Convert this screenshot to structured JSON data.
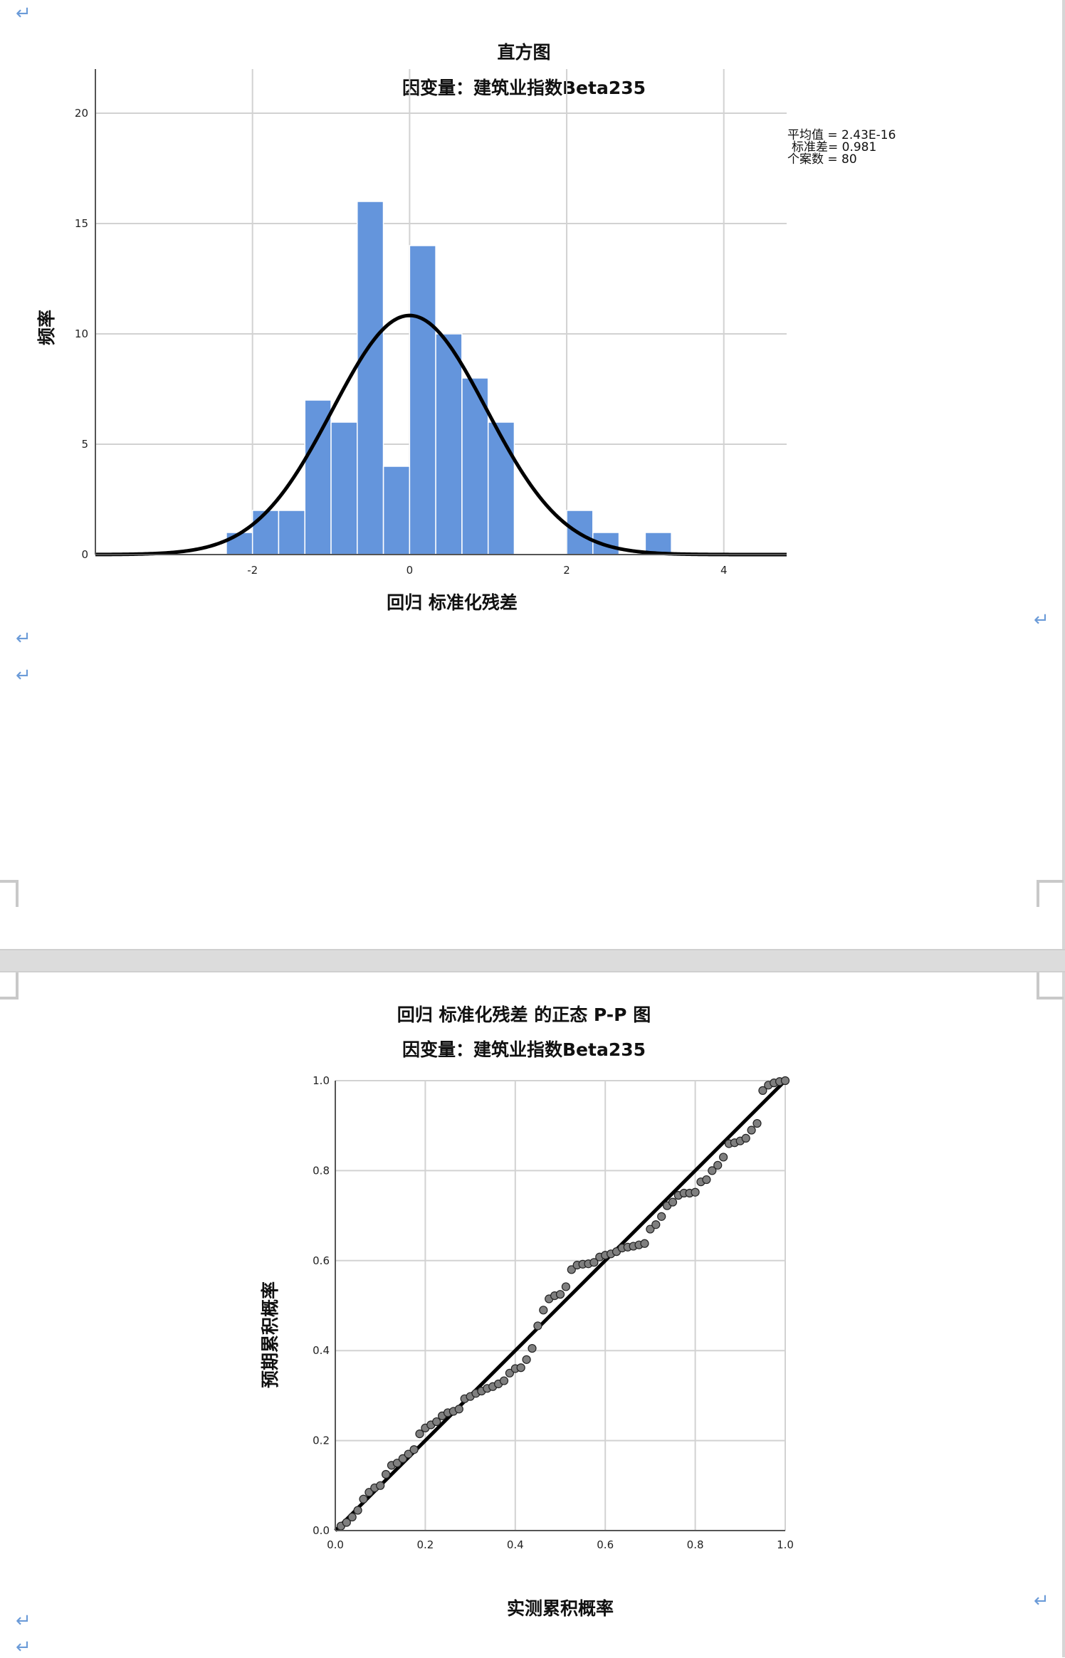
{
  "paragraph_mark": "↵",
  "chart_data": [
    {
      "type": "bar",
      "subtype": "histogram",
      "title": "直方图",
      "subtitle": "因变量：建筑业指数Beta235",
      "xlabel": "回归 标准化残差",
      "ylabel": "频率",
      "xlim": [
        -4.0,
        4.8
      ],
      "ylim": [
        0,
        22
      ],
      "x_ticks": [
        -2,
        0,
        2,
        4
      ],
      "y_ticks": [
        0,
        5,
        10,
        15,
        20
      ],
      "grid": true,
      "bar_color": "#6495dc",
      "bin_width": 0.333,
      "bins": [
        {
          "start": -2.333,
          "count": 1
        },
        {
          "start": -2.0,
          "count": 2
        },
        {
          "start": -1.667,
          "count": 2
        },
        {
          "start": -1.333,
          "count": 7
        },
        {
          "start": -1.0,
          "count": 6
        },
        {
          "start": -0.667,
          "count": 16
        },
        {
          "start": -0.333,
          "count": 4
        },
        {
          "start": 0.0,
          "count": 14
        },
        {
          "start": 0.333,
          "count": 10
        },
        {
          "start": 0.667,
          "count": 8
        },
        {
          "start": 1.0,
          "count": 6
        },
        {
          "start": 2.0,
          "count": 2
        },
        {
          "start": 2.333,
          "count": 1
        },
        {
          "start": 3.0,
          "count": 1
        }
      ],
      "normal_curve": {
        "mean": 0,
        "sd": 0.981,
        "n": 80
      },
      "stats": [
        {
          "label": "平均值 = 2.43E-16"
        },
        {
          "label": "标准差= 0.981"
        },
        {
          "label": "个案数 = 80"
        }
      ]
    },
    {
      "type": "scatter",
      "subtype": "pp-plot",
      "title": "回归 标准化残差 的正态 P-P 图",
      "subtitle": "因变量：建筑业指数Beta235",
      "xlabel": "实测累积概率",
      "ylabel": "预期累积概率",
      "xlim": [
        0.0,
        1.0
      ],
      "ylim": [
        0.0,
        1.0
      ],
      "x_ticks": [
        "0.0",
        "0.2",
        "0.4",
        "0.6",
        "0.8",
        "1.0"
      ],
      "y_ticks": [
        "0.0",
        "0.2",
        "0.4",
        "0.6",
        "0.8",
        "1.0"
      ],
      "grid": true,
      "reference_line": [
        [
          0,
          0
        ],
        [
          1,
          1
        ]
      ],
      "point_color": "#7f7f7f",
      "points": [
        [
          0.0125,
          0.01
        ],
        [
          0.025,
          0.018
        ],
        [
          0.0375,
          0.03
        ],
        [
          0.05,
          0.045
        ],
        [
          0.0625,
          0.07
        ],
        [
          0.075,
          0.085
        ],
        [
          0.0875,
          0.095
        ],
        [
          0.1,
          0.1
        ],
        [
          0.1125,
          0.125
        ],
        [
          0.125,
          0.145
        ],
        [
          0.1375,
          0.15
        ],
        [
          0.15,
          0.16
        ],
        [
          0.1625,
          0.17
        ],
        [
          0.175,
          0.18
        ],
        [
          0.1875,
          0.215
        ],
        [
          0.2,
          0.228
        ],
        [
          0.2125,
          0.235
        ],
        [
          0.225,
          0.242
        ],
        [
          0.2375,
          0.255
        ],
        [
          0.25,
          0.262
        ],
        [
          0.2625,
          0.265
        ],
        [
          0.275,
          0.27
        ],
        [
          0.2875,
          0.293
        ],
        [
          0.3,
          0.298
        ],
        [
          0.3125,
          0.305
        ],
        [
          0.325,
          0.31
        ],
        [
          0.3375,
          0.316
        ],
        [
          0.35,
          0.32
        ],
        [
          0.3625,
          0.326
        ],
        [
          0.375,
          0.333
        ],
        [
          0.3875,
          0.35
        ],
        [
          0.4,
          0.36
        ],
        [
          0.4125,
          0.362
        ],
        [
          0.425,
          0.38
        ],
        [
          0.4375,
          0.405
        ],
        [
          0.45,
          0.455
        ],
        [
          0.4625,
          0.49
        ],
        [
          0.475,
          0.515
        ],
        [
          0.4875,
          0.522
        ],
        [
          0.5,
          0.525
        ],
        [
          0.5125,
          0.542
        ],
        [
          0.525,
          0.58
        ],
        [
          0.5375,
          0.59
        ],
        [
          0.55,
          0.592
        ],
        [
          0.5625,
          0.593
        ],
        [
          0.575,
          0.596
        ],
        [
          0.5875,
          0.608
        ],
        [
          0.6,
          0.612
        ],
        [
          0.6125,
          0.615
        ],
        [
          0.625,
          0.62
        ],
        [
          0.6375,
          0.628
        ],
        [
          0.65,
          0.63
        ],
        [
          0.6625,
          0.632
        ],
        [
          0.675,
          0.635
        ],
        [
          0.6875,
          0.638
        ],
        [
          0.7,
          0.67
        ],
        [
          0.7125,
          0.68
        ],
        [
          0.725,
          0.698
        ],
        [
          0.7375,
          0.722
        ],
        [
          0.75,
          0.73
        ],
        [
          0.7625,
          0.745
        ],
        [
          0.775,
          0.75
        ],
        [
          0.7875,
          0.75
        ],
        [
          0.8,
          0.752
        ],
        [
          0.8125,
          0.775
        ],
        [
          0.825,
          0.78
        ],
        [
          0.8375,
          0.8
        ],
        [
          0.85,
          0.812
        ],
        [
          0.8625,
          0.83
        ],
        [
          0.875,
          0.86
        ],
        [
          0.8875,
          0.862
        ],
        [
          0.9,
          0.866
        ],
        [
          0.9125,
          0.872
        ],
        [
          0.925,
          0.89
        ],
        [
          0.9375,
          0.905
        ],
        [
          0.95,
          0.978
        ],
        [
          0.9625,
          0.99
        ],
        [
          0.975,
          0.995
        ],
        [
          0.9875,
          0.998
        ],
        [
          1.0,
          1.0
        ]
      ]
    }
  ]
}
